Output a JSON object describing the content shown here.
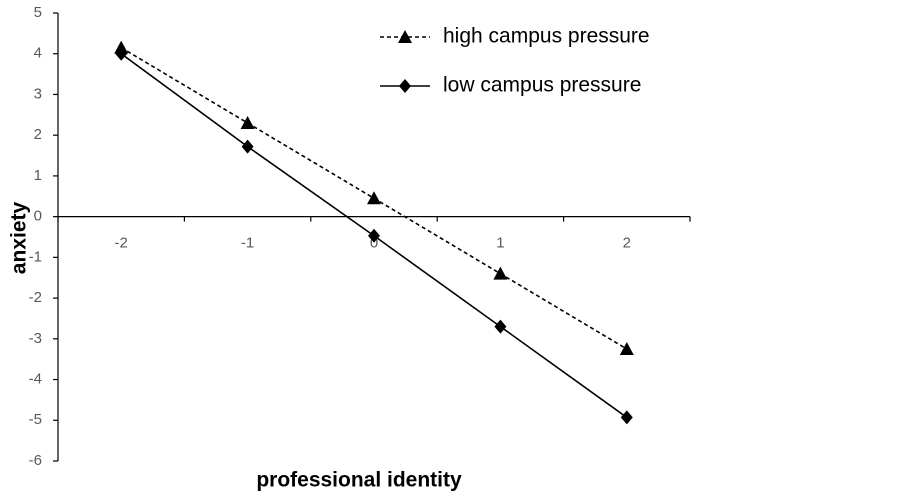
{
  "chart_data": {
    "type": "line",
    "x_label": "professional identity",
    "y_label": "anxiety",
    "categories": [
      "-2",
      "-1",
      "0",
      "1",
      "2"
    ],
    "series": [
      {
        "name": "high campus pressure",
        "color": "#000000",
        "dash": "dashed",
        "marker": "triangle",
        "values": [
          4.15,
          2.3,
          0.45,
          -1.4,
          -3.25
        ]
      },
      {
        "name": "low campus pressure",
        "color": "#000000",
        "dash": "solid",
        "marker": "diamond",
        "values": [
          4.0,
          1.72,
          -0.47,
          -2.7,
          -4.93
        ]
      }
    ],
    "ylim": [
      -6,
      5
    ],
    "yticks": [
      -6,
      -5,
      -4,
      -3,
      -2,
      -1,
      0,
      1,
      2,
      3,
      4,
      5
    ],
    "grid": false,
    "legend": "top-right"
  }
}
